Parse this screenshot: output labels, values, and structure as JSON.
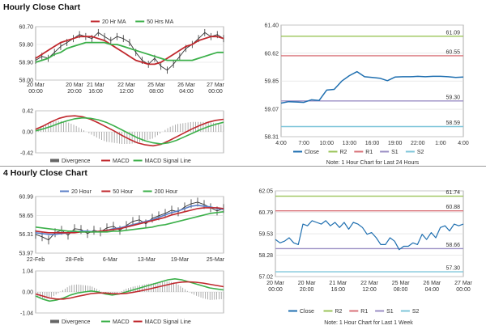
{
  "sections": [
    {
      "title": "Hourly Close Chart"
    },
    {
      "title": "4 Hourly Close Chart"
    }
  ],
  "colors": {
    "price": "#333333",
    "ma_short": "#c0282d",
    "ma_long": "#3cb04a",
    "ma_mid": "#5b7fc7",
    "close": "#1f6fb0",
    "r2": "#9bc45a",
    "r1": "#d9737a",
    "s1": "#9b8fc4",
    "s2": "#7fc6da",
    "divergence": "#9a9a9a"
  },
  "chart_data": [
    {
      "id": "hourly-price",
      "type": "line",
      "ylim": [
        58.0,
        60.7
      ],
      "yticks": [
        "60.70",
        "59.80",
        "58.90",
        "58.00"
      ],
      "ytick_values": [
        60.7,
        59.8,
        58.9,
        58.0
      ],
      "xticks": [
        "20 Mar 20:00",
        "21 Mar 16:00",
        "22 Mar 12:00",
        "25 Mar 08:00",
        "26 Mar 04:00",
        "27 Mar 00:00"
      ],
      "xtick_first": "20 Mar 00:00",
      "legend": [
        "20 Hr MA",
        "50 Hrs MA"
      ],
      "series": [
        {
          "name": "Price",
          "values": [
            59.0,
            59.2,
            59.1,
            59.4,
            59.7,
            59.9,
            60.1,
            60.3,
            60.2,
            60.1,
            60.4,
            60.2,
            60.0,
            60.2,
            60.1,
            59.9,
            59.4,
            59.0,
            58.8,
            59.1,
            58.7,
            58.5,
            58.8,
            59.2,
            59.6,
            59.8,
            60.1,
            60.4,
            60.2,
            60.3,
            60.1
          ]
        },
        {
          "name": "20 Hr MA",
          "values": [
            59.1,
            59.3,
            59.5,
            59.7,
            59.9,
            60.0,
            60.1,
            60.2,
            60.2,
            60.2,
            60.1,
            60.0,
            59.8,
            59.6,
            59.4,
            59.2,
            59.0,
            58.9,
            58.8,
            58.8,
            58.9,
            59.1,
            59.3,
            59.5,
            59.7,
            59.8,
            60.0,
            60.1,
            60.2,
            60.2,
            60.1
          ]
        },
        {
          "name": "50 Hrs MA",
          "values": [
            58.9,
            59.0,
            59.1,
            59.3,
            59.4,
            59.6,
            59.7,
            59.8,
            59.9,
            59.9,
            59.9,
            59.9,
            59.8,
            59.8,
            59.7,
            59.6,
            59.5,
            59.4,
            59.3,
            59.2,
            59.1,
            59.0,
            59.0,
            59.0,
            59.0,
            59.0,
            59.1,
            59.2,
            59.3,
            59.4,
            59.4
          ]
        }
      ]
    },
    {
      "id": "hourly-macd",
      "type": "line",
      "ylim": [
        -0.42,
        0.42
      ],
      "yticks": [
        "0.42",
        "0.00",
        "-0.42"
      ],
      "ytick_values": [
        0.42,
        0.0,
        -0.42
      ],
      "legend": [
        "Divergence",
        "MACD",
        "MACD Signal Line"
      ],
      "series": [
        {
          "name": "MACD",
          "values": [
            0.05,
            0.12,
            0.2,
            0.27,
            0.31,
            0.32,
            0.3,
            0.25,
            0.18,
            0.1,
            0.02,
            -0.07,
            -0.15,
            -0.22,
            -0.26,
            -0.28,
            -0.25,
            -0.18,
            -0.1,
            -0.02,
            0.06,
            0.13,
            0.19,
            0.23,
            0.25
          ]
        },
        {
          "name": "MACD Signal Line",
          "values": [
            0.02,
            0.06,
            0.11,
            0.17,
            0.22,
            0.26,
            0.28,
            0.27,
            0.24,
            0.19,
            0.12,
            0.04,
            -0.04,
            -0.12,
            -0.18,
            -0.22,
            -0.24,
            -0.22,
            -0.17,
            -0.1,
            -0.03,
            0.04,
            0.1,
            0.15,
            0.19
          ]
        }
      ]
    },
    {
      "id": "hourly-close",
      "type": "line",
      "ylim": [
        58.31,
        61.4
      ],
      "yticks": [
        "61.40",
        "60.62",
        "59.85",
        "59.07",
        "58.31"
      ],
      "ytick_values": [
        61.4,
        60.62,
        59.85,
        59.07,
        58.31
      ],
      "xticks": [
        "4:00",
        "7:00",
        "10:00",
        "13:00",
        "16:00",
        "19:00",
        "22:00",
        "1:00",
        "4:00"
      ],
      "legend": [
        "Close",
        "R2",
        "R1",
        "S1",
        "S2"
      ],
      "levels": [
        {
          "name": "R2",
          "value": 61.09,
          "label": "61.09"
        },
        {
          "name": "R1",
          "value": 60.55,
          "label": "60.55"
        },
        {
          "name": "S1",
          "value": 59.3,
          "label": "59.30"
        },
        {
          "name": "S2",
          "value": 58.59,
          "label": "58.59"
        }
      ],
      "series": [
        {
          "name": "Close",
          "values": [
            59.24,
            59.28,
            59.27,
            59.26,
            59.33,
            59.31,
            59.6,
            59.62,
            59.85,
            60.0,
            60.11,
            59.97,
            59.95,
            59.93,
            59.86,
            59.96,
            59.97,
            59.97,
            59.98,
            59.97,
            59.98,
            59.98,
            59.97,
            59.95,
            59.96
          ]
        }
      ],
      "note": "Note: 1 Hour Chart for Last 24 Hours"
    },
    {
      "id": "fourhourly-price",
      "type": "line",
      "ylim": [
        53.97,
        60.99
      ],
      "yticks": [
        "60.99",
        "58.65",
        "56.31",
        "53.97"
      ],
      "ytick_values": [
        60.99,
        58.65,
        56.31,
        53.97
      ],
      "xticks": [
        "22-Feb",
        "28-Feb",
        "6-Mar",
        "13-Mar",
        "19-Mar",
        "25-Mar"
      ],
      "legend": [
        "20 Hour",
        "50 Hour",
        "200 Hour"
      ],
      "series": [
        {
          "name": "Price",
          "values": [
            56.3,
            56.0,
            55.6,
            56.5,
            56.8,
            56.2,
            57.0,
            56.9,
            56.4,
            56.8,
            56.6,
            57.1,
            57.3,
            56.8,
            57.4,
            57.9,
            58.1,
            57.6,
            58.3,
            58.6,
            58.9,
            59.3,
            59.1,
            59.7,
            60.1,
            60.3,
            60.0,
            59.6,
            59.2,
            59.5
          ]
        },
        {
          "name": "20 Hour",
          "values": [
            56.5,
            56.4,
            56.3,
            56.3,
            56.4,
            56.5,
            56.6,
            56.7,
            56.7,
            56.6,
            56.7,
            56.8,
            57.0,
            57.1,
            57.3,
            57.5,
            57.7,
            57.9,
            58.1,
            58.4,
            58.7,
            59.0,
            59.2,
            59.5,
            59.8,
            59.9,
            59.8,
            59.7,
            59.5,
            59.4
          ]
        },
        {
          "name": "50 Hour",
          "values": [
            56.7,
            56.6,
            56.5,
            56.5,
            56.5,
            56.5,
            56.5,
            56.6,
            56.6,
            56.6,
            56.7,
            56.8,
            56.9,
            57.0,
            57.2,
            57.4,
            57.6,
            57.8,
            58.0,
            58.2,
            58.4,
            58.7,
            58.9,
            59.1,
            59.3,
            59.5,
            59.6,
            59.6,
            59.6,
            59.5
          ]
        },
        {
          "name": "200 Hour",
          "values": [
            57.2,
            57.1,
            57.0,
            56.9,
            56.8,
            56.7,
            56.7,
            56.6,
            56.6,
            56.6,
            56.6,
            56.6,
            56.7,
            56.7,
            56.8,
            56.9,
            57.0,
            57.1,
            57.2,
            57.4,
            57.5,
            57.7,
            57.9,
            58.1,
            58.3,
            58.5,
            58.7,
            58.9,
            59.0,
            59.1
          ]
        }
      ]
    },
    {
      "id": "fourhourly-macd",
      "type": "line",
      "ylim": [
        -1.04,
        1.04
      ],
      "yticks": [
        "1.04",
        "0.00",
        "-1.04"
      ],
      "ytick_values": [
        1.04,
        0.0,
        -1.04
      ],
      "legend": [
        "Divergence",
        "MACD",
        "MACD Signal Line"
      ],
      "series": [
        {
          "name": "MACD",
          "values": [
            -0.2,
            -0.35,
            -0.45,
            -0.4,
            -0.3,
            -0.15,
            -0.05,
            0.0,
            0.05,
            0.0,
            -0.1,
            -0.15,
            -0.1,
            0.0,
            0.1,
            0.2,
            0.3,
            0.4,
            0.5,
            0.6,
            0.65,
            0.6,
            0.5,
            0.4,
            0.3,
            0.2,
            0.15,
            0.1
          ]
        },
        {
          "name": "MACD Signal Line",
          "values": [
            -0.1,
            -0.2,
            -0.3,
            -0.35,
            -0.35,
            -0.3,
            -0.22,
            -0.15,
            -0.08,
            -0.05,
            -0.05,
            -0.08,
            -0.09,
            -0.07,
            -0.02,
            0.05,
            0.12,
            0.2,
            0.28,
            0.36,
            0.44,
            0.49,
            0.5,
            0.48,
            0.44,
            0.38,
            0.32,
            0.26
          ]
        }
      ]
    },
    {
      "id": "fourhourly-close",
      "type": "line",
      "ylim": [
        57.02,
        62.05
      ],
      "yticks": [
        "62.05",
        "60.79",
        "59.53",
        "58.28",
        "57.02"
      ],
      "ytick_values": [
        62.05,
        60.79,
        59.53,
        58.28,
        57.02
      ],
      "xticks": [
        "20 Mar 00:00",
        "20 Mar 20:00",
        "21 Mar 16:00",
        "22 Mar 12:00",
        "25 Mar 08:00",
        "26 Mar 04:00",
        "27 Mar 00:00"
      ],
      "legend": [
        "Close",
        "R2",
        "R1",
        "S1",
        "S2"
      ],
      "levels": [
        {
          "name": "R2",
          "value": 61.74,
          "label": "61.74"
        },
        {
          "name": "R1",
          "value": 60.88,
          "label": "60.88"
        },
        {
          "name": "S1",
          "value": 58.66,
          "label": "58.66"
        },
        {
          "name": "S2",
          "value": 57.3,
          "label": "57.30"
        }
      ],
      "series": [
        {
          "name": "Close",
          "values": [
            59.2,
            59.0,
            59.1,
            59.3,
            59.0,
            58.9,
            60.1,
            60.0,
            60.3,
            60.2,
            60.1,
            60.3,
            60.0,
            60.2,
            59.9,
            60.2,
            59.8,
            60.2,
            60.1,
            59.9,
            59.5,
            59.6,
            59.3,
            58.9,
            58.9,
            59.3,
            59.1,
            58.6,
            58.8,
            58.8,
            59.0,
            58.9,
            59.5,
            59.2,
            59.6,
            59.3,
            59.9,
            60.0,
            59.7,
            60.1,
            60.0,
            60.1
          ]
        }
      ],
      "note": "Note: 1 Hour Chart for Last 1 Week"
    }
  ]
}
